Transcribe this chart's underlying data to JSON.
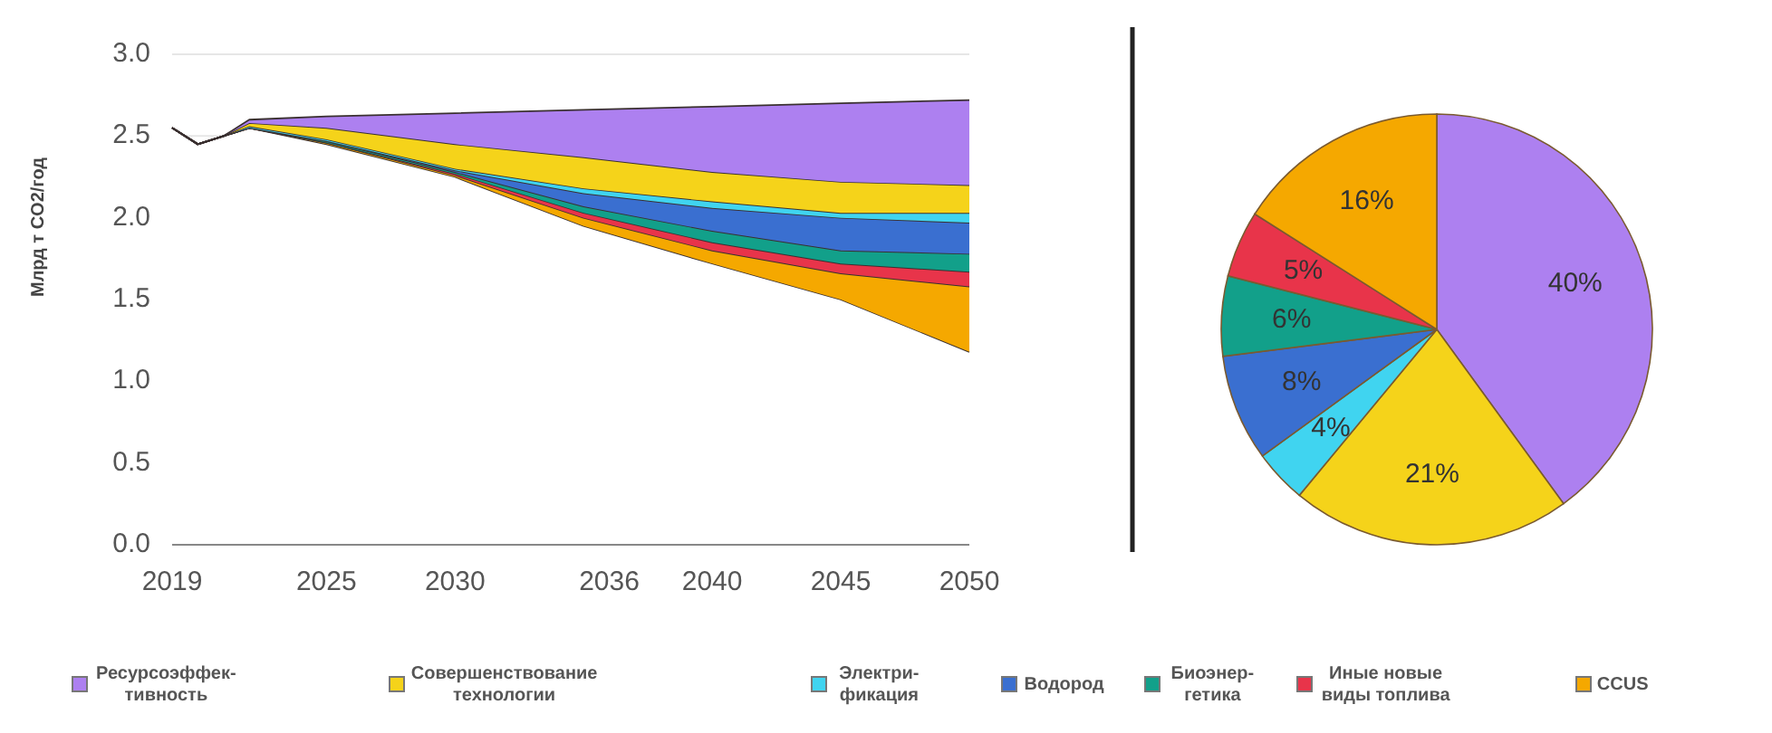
{
  "chart_data": [
    {
      "type": "area",
      "stacked": true,
      "ylabel": "Млрд т CO2/год",
      "x": [
        2019,
        2020,
        2021,
        2022,
        2025,
        2030,
        2035,
        2040,
        2045,
        2050
      ],
      "xlim": [
        2019,
        2050
      ],
      "xticks": [
        2019,
        2025,
        2030,
        2036,
        2040,
        2045,
        2050
      ],
      "ylim": [
        0,
        3
      ],
      "yticks": [
        {
          "value": 0,
          "label": "0.0"
        },
        {
          "value": 0.5,
          "label": "0.5"
        },
        {
          "value": 1,
          "label": "1.0"
        },
        {
          "value": 1.5,
          "label": "1.5"
        },
        {
          "value": 2,
          "label": "2.0"
        },
        {
          "value": 2.5,
          "label": "2.5"
        },
        {
          "value": 3,
          "label": "3.0"
        }
      ],
      "grid": "y",
      "legend": "bottom",
      "series": [
        {
          "color": "#ffffff",
          "values": [
            2.55,
            2.45,
            2.5,
            2.55,
            2.45,
            2.25,
            1.95,
            1.72,
            1.5,
            1.18
          ]
        },
        {
          "name": "CCUS",
          "color": "#f5a800",
          "values": [
            0,
            0,
            0,
            0,
            0.01,
            0.01,
            0.05,
            0.08,
            0.16,
            0.4
          ]
        },
        {
          "name": "Иные новые\nвиды топлива",
          "color": "#e8344a",
          "values": [
            0,
            0,
            0,
            0,
            0,
            0.01,
            0.03,
            0.05,
            0.06,
            0.09
          ]
        },
        {
          "name": "Биоэнер-\nгетика",
          "color": "#12a08a",
          "values": [
            0,
            0,
            0,
            0,
            0.01,
            0.01,
            0.04,
            0.07,
            0.08,
            0.11
          ]
        },
        {
          "name": "Водород",
          "color": "#3a6fd0",
          "values": [
            0,
            0,
            0,
            0,
            0,
            0.01,
            0.08,
            0.14,
            0.2,
            0.19
          ]
        },
        {
          "name": "Электри-\nфикация",
          "color": "#40d4f0",
          "values": [
            0,
            0,
            0,
            0.01,
            0.01,
            0.01,
            0.03,
            0.04,
            0.03,
            0.06
          ]
        },
        {
          "name": "Совершенствование\nтехнологии",
          "color": "#f5d31a",
          "values": [
            0,
            0,
            0,
            0.02,
            0.07,
            0.15,
            0.19,
            0.18,
            0.19,
            0.17
          ]
        },
        {
          "name": "Ресурсоэффек-\nтивность",
          "color": "#ad80f0",
          "values": [
            0,
            0,
            0,
            0.02,
            0.07,
            0.19,
            0.29,
            0.4,
            0.48,
            0.52
          ]
        }
      ]
    },
    {
      "type": "pie",
      "categories": [
        null,
        null,
        null,
        null,
        null,
        null,
        null
      ],
      "values": [
        40,
        21,
        4,
        8,
        6,
        5,
        16
      ],
      "colors": [
        "#ad80f0",
        "#f5d31a",
        "#40d4f0",
        "#3a6fd0",
        "#12a08a",
        "#e8344a",
        "#f5a800"
      ],
      "value_labels": [
        "40%",
        "21%",
        "4%",
        "8%",
        "6%",
        "5%",
        "16%"
      ]
    }
  ]
}
